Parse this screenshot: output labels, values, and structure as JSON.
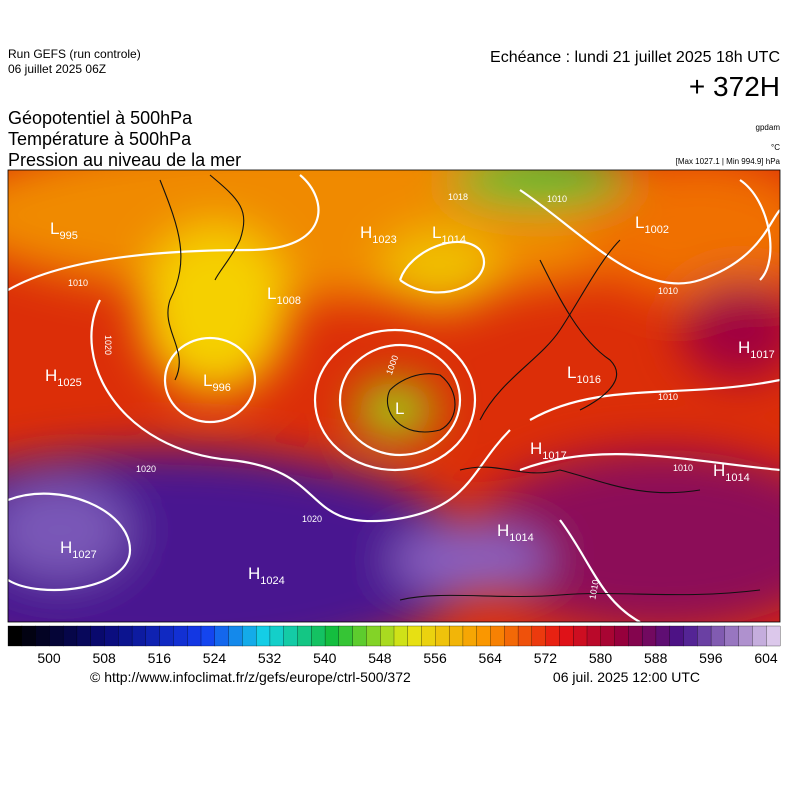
{
  "header": {
    "run": "Run GEFS (run controle)",
    "run_date": "06 juillet 2025 06Z",
    "valid_time": "Echéance : lundi 21 juillet 2025 18h UTC",
    "lead_time": "+ 372H"
  },
  "fields": [
    "Géopotentiel à 500hPa",
    "Température à 500hPa",
    "Pression au niveau de la mer"
  ],
  "units": {
    "geopotential": "gpdam",
    "temperature": "°C",
    "pressure": "[Max 1027.1 | Min 994.9] hPa"
  },
  "pressure_centers": [
    {
      "type": "L",
      "value": 995
    },
    {
      "type": "H",
      "value": 1023
    },
    {
      "type": "L",
      "value": 1014
    },
    {
      "type": "L",
      "value": 1002
    },
    {
      "type": "L",
      "value": 1008
    },
    {
      "type": "H",
      "value": 1025
    },
    {
      "type": "L",
      "value": 996
    },
    {
      "type": "L"
    },
    {
      "type": "L",
      "value": 1016
    },
    {
      "type": "H",
      "value": 1017
    },
    {
      "type": "H",
      "value": 1017
    },
    {
      "type": "H",
      "value": 1014
    },
    {
      "type": "H",
      "value": 1014
    },
    {
      "type": "H",
      "value": 1027
    },
    {
      "type": "H",
      "value": 1024
    }
  ],
  "isobar_labels": [
    1010,
    1018,
    1010,
    1010,
    1020,
    1020,
    1020,
    1010,
    1010,
    1010,
    1000
  ],
  "colorbar": {
    "ticks": [
      500,
      508,
      516,
      524,
      532,
      540,
      548,
      556,
      564,
      572,
      580,
      588,
      596,
      604
    ]
  },
  "footer": {
    "source": "© http://www.infoclimat.fr/z/gefs/europe/ctrl-500/372",
    "issued": "06 juil. 2025 12:00 UTC"
  }
}
